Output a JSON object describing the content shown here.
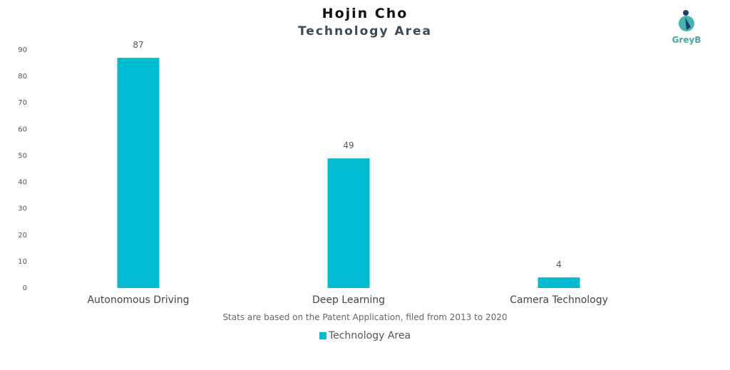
{
  "header": {
    "title": "Hojin Cho",
    "subtitle": "Technology Area"
  },
  "footer": {
    "note": "Stats are based on the Patent Application, filed from 2013 to 2020"
  },
  "legend": {
    "label": "Technology Area",
    "color": "#00bcd0"
  },
  "logo": {
    "text": "GreyB",
    "color": "#3fa9a2"
  },
  "chart_data": {
    "type": "bar",
    "categories": [
      "Autonomous Driving",
      "Deep Learning",
      "Camera Technology"
    ],
    "series": [
      {
        "name": "Technology Area",
        "values": [
          87,
          49,
          4
        ],
        "color": "#00bcd0"
      }
    ],
    "yticks": [
      0,
      10,
      20,
      30,
      40,
      50,
      60,
      70,
      80,
      90
    ],
    "ylim": [
      0,
      90
    ],
    "grid": false,
    "data_labels": true,
    "legend_position": "bottom"
  }
}
